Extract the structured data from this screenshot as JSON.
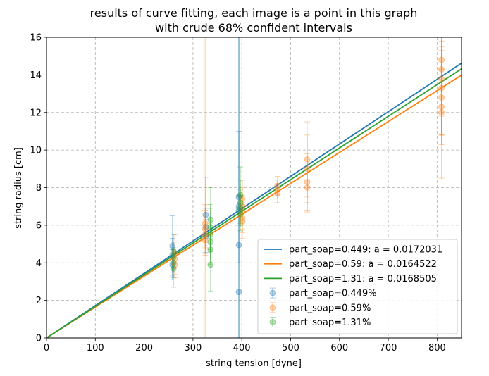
{
  "chart_data": {
    "type": "scatter",
    "title_line1": "results of curve fitting, each image is a point in this graph",
    "title_line2": "with crude 68% confident intervals",
    "xlabel": "string tension [dyne]",
    "ylabel": "string radius [cm]",
    "xlim": [
      0,
      850
    ],
    "ylim": [
      0,
      16
    ],
    "xticks": [
      "0",
      "100",
      "200",
      "300",
      "400",
      "500",
      "600",
      "700",
      "800"
    ],
    "yticks": [
      "0",
      "2",
      "4",
      "6",
      "8",
      "10",
      "12",
      "14",
      "16"
    ],
    "grid": true,
    "legend_position": "lower right",
    "fit_lines": [
      {
        "label": "part_soap=0.449: a = 0.0172031",
        "slope": 0.0172031,
        "color": "#1f77b4"
      },
      {
        "label": "part_soap=0.59: a = 0.0164522",
        "slope": 0.0164522,
        "color": "#ff7f0e"
      },
      {
        "label": "part_soap=1.31: a = 0.0168505",
        "slope": 0.0168505,
        "color": "#2ca02c"
      }
    ],
    "series": [
      {
        "name": "part_soap=0.449%",
        "color": "#1f77b4",
        "points": [
          {
            "x": 258,
            "y": 4.9,
            "err": 1.6
          },
          {
            "x": 258,
            "y": 4.4,
            "err": 0.9
          },
          {
            "x": 258,
            "y": 3.9,
            "err": 0.8
          },
          {
            "x": 326,
            "y": 6.55,
            "err": 2.0
          },
          {
            "x": 326,
            "y": 5.9,
            "err": 1.0
          },
          {
            "x": 326,
            "y": 5.4,
            "err": 0.9
          },
          {
            "x": 394,
            "y": 7.5,
            "err": 3.5
          },
          {
            "x": 394,
            "y": 7.0,
            "err": 25
          },
          {
            "x": 394,
            "y": 6.8,
            "err": 0.8
          },
          {
            "x": 394,
            "y": 4.95,
            "err": 14
          },
          {
            "x": 394,
            "y": 2.45,
            "err": 20
          }
        ]
      },
      {
        "name": "part_soap=0.59%",
        "color": "#ff7f0e",
        "points": [
          {
            "x": 263,
            "y": 4.5,
            "err": 1.0
          },
          {
            "x": 263,
            "y": 4.2,
            "err": 0.8
          },
          {
            "x": 263,
            "y": 3.9,
            "err": 0.7
          },
          {
            "x": 325,
            "y": 6.1,
            "err": 1.0
          },
          {
            "x": 325,
            "y": 5.8,
            "err": 1.0
          },
          {
            "x": 325,
            "y": 5.5,
            "err": 25
          },
          {
            "x": 325,
            "y": 5.2,
            "err": 0.8
          },
          {
            "x": 401,
            "y": 7.4,
            "err": 1.0
          },
          {
            "x": 401,
            "y": 7.0,
            "err": 1.0
          },
          {
            "x": 401,
            "y": 6.7,
            "err": 0.9
          },
          {
            "x": 401,
            "y": 6.4,
            "err": 0.8
          },
          {
            "x": 401,
            "y": 6.2,
            "err": 0.9
          },
          {
            "x": 473,
            "y": 8.1,
            "err": 0.5
          },
          {
            "x": 473,
            "y": 7.9,
            "err": 0.5
          },
          {
            "x": 473,
            "y": 7.7,
            "err": 0.5
          },
          {
            "x": 534,
            "y": 9.5,
            "err": 2.0
          },
          {
            "x": 534,
            "y": 9.0,
            "err": 1.8
          },
          {
            "x": 534,
            "y": 8.3,
            "err": 1.5
          },
          {
            "x": 534,
            "y": 8.0,
            "err": 1.3
          },
          {
            "x": 809,
            "y": 14.8,
            "err": 3.0
          },
          {
            "x": 809,
            "y": 14.3,
            "err": 3.5
          },
          {
            "x": 809,
            "y": 13.8,
            "err": 3.0
          },
          {
            "x": 809,
            "y": 13.3,
            "err": 2.5
          },
          {
            "x": 809,
            "y": 12.8,
            "err": 2.5
          },
          {
            "x": 809,
            "y": 12.3,
            "err": 2.0
          },
          {
            "x": 809,
            "y": 12.0,
            "err": 3.5
          }
        ]
      },
      {
        "name": "part_soap=1.31%",
        "color": "#2ca02c",
        "points": [
          {
            "x": 260,
            "y": 4.6,
            "err": 0.9
          },
          {
            "x": 260,
            "y": 4.3,
            "err": 0.8
          },
          {
            "x": 260,
            "y": 4.0,
            "err": 0.8
          },
          {
            "x": 260,
            "y": 3.7,
            "err": 1.0
          },
          {
            "x": 336,
            "y": 6.3,
            "err": 1.7
          },
          {
            "x": 336,
            "y": 5.9,
            "err": 1.2
          },
          {
            "x": 336,
            "y": 5.5,
            "err": 1.4
          },
          {
            "x": 336,
            "y": 5.1,
            "err": 1.0
          },
          {
            "x": 336,
            "y": 4.7,
            "err": 0.8
          },
          {
            "x": 336,
            "y": 3.9,
            "err": 1.4
          },
          {
            "x": 397,
            "y": 7.6,
            "err": 1.5
          },
          {
            "x": 397,
            "y": 7.2,
            "err": 1.2
          },
          {
            "x": 397,
            "y": 6.9,
            "err": 1.0
          },
          {
            "x": 397,
            "y": 6.6,
            "err": 0.9
          }
        ]
      }
    ]
  }
}
